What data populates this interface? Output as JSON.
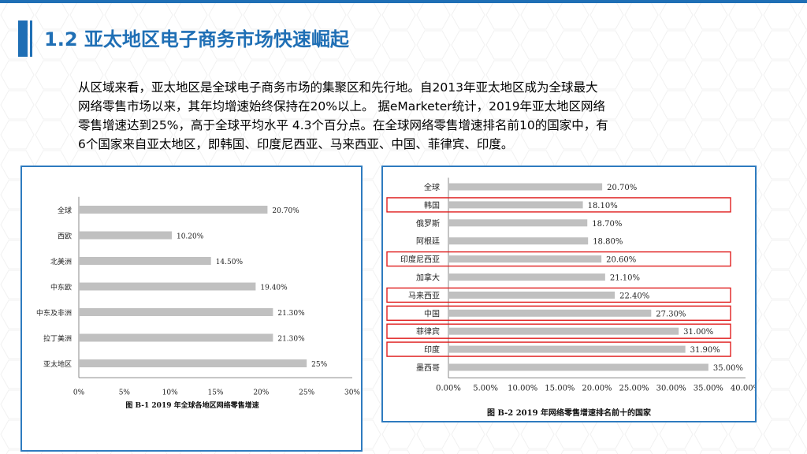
{
  "slide": {
    "title": "1.2 亚太地区电子商务市场快速崛起",
    "paragraph_lines": [
      "从区域来看，亚太地区是全球电子商务市场的集聚区和先行地。自2013年亚太地区成为全球最大",
      "网络零售市场以来，其年均增速始终保持在20%以上。  据eMarketer统计，2019年亚太地区网络",
      "零售增速达到25%，高于全球平均水平  4.3个百分点。在全球网络零售增速排名前10的国家中，有",
      "6个国家来自亚太地区，即韩国、印度尼西亚、马来西亚、中国、菲律宾、印度。"
    ]
  },
  "colors": {
    "accent": "#1f6fb5",
    "bar": "#c0c0c0",
    "highlight": "#e02020"
  },
  "chart_data": [
    {
      "type": "bar",
      "orientation": "horizontal",
      "title": "图 B-1    2019 年全球各地区网络零售增速",
      "categories": [
        "全球",
        "西欧",
        "北美洲",
        "中东欧",
        "中东及非洲",
        "拉丁美洲",
        "亚太地区"
      ],
      "values": [
        20.7,
        10.2,
        14.5,
        19.4,
        21.3,
        21.3,
        25
      ],
      "value_labels": [
        "20.70%",
        "10.20%",
        "14.50%",
        "19.40%",
        "21.30%",
        "21.30%",
        "25%"
      ],
      "xlim": [
        0,
        30
      ],
      "xticks": [
        "0%",
        "5%",
        "10%",
        "15%",
        "20%",
        "25%",
        "30%"
      ],
      "grid": false
    },
    {
      "type": "bar",
      "orientation": "horizontal",
      "title": "图 B-2    2019 年网络零售增速排名前十的国家",
      "categories": [
        "全球",
        "韩国",
        "俄罗斯",
        "阿根廷",
        "印度尼西亚",
        "加拿大",
        "马来西亚",
        "中国",
        "菲律宾",
        "印度",
        "墨西哥"
      ],
      "values": [
        20.7,
        18.1,
        18.7,
        18.8,
        20.6,
        21.1,
        22.4,
        27.3,
        31.0,
        31.9,
        35.0
      ],
      "value_labels": [
        "20.70%",
        "18.10%",
        "18.70%",
        "18.80%",
        "20.60%",
        "21.10%",
        "22.40%",
        "27.30%",
        "31.00%",
        "31.90%",
        "35.00%"
      ],
      "highlighted": [
        "韩国",
        "印度尼西亚",
        "马来西亚",
        "中国",
        "菲律宾",
        "印度"
      ],
      "xlim": [
        0,
        40
      ],
      "xticks": [
        "0.00%",
        "5.00%",
        "10.00%",
        "15.00%",
        "20.00%",
        "25.00%",
        "30.00%",
        "35.00%",
        "40.00%"
      ],
      "grid": false
    }
  ]
}
